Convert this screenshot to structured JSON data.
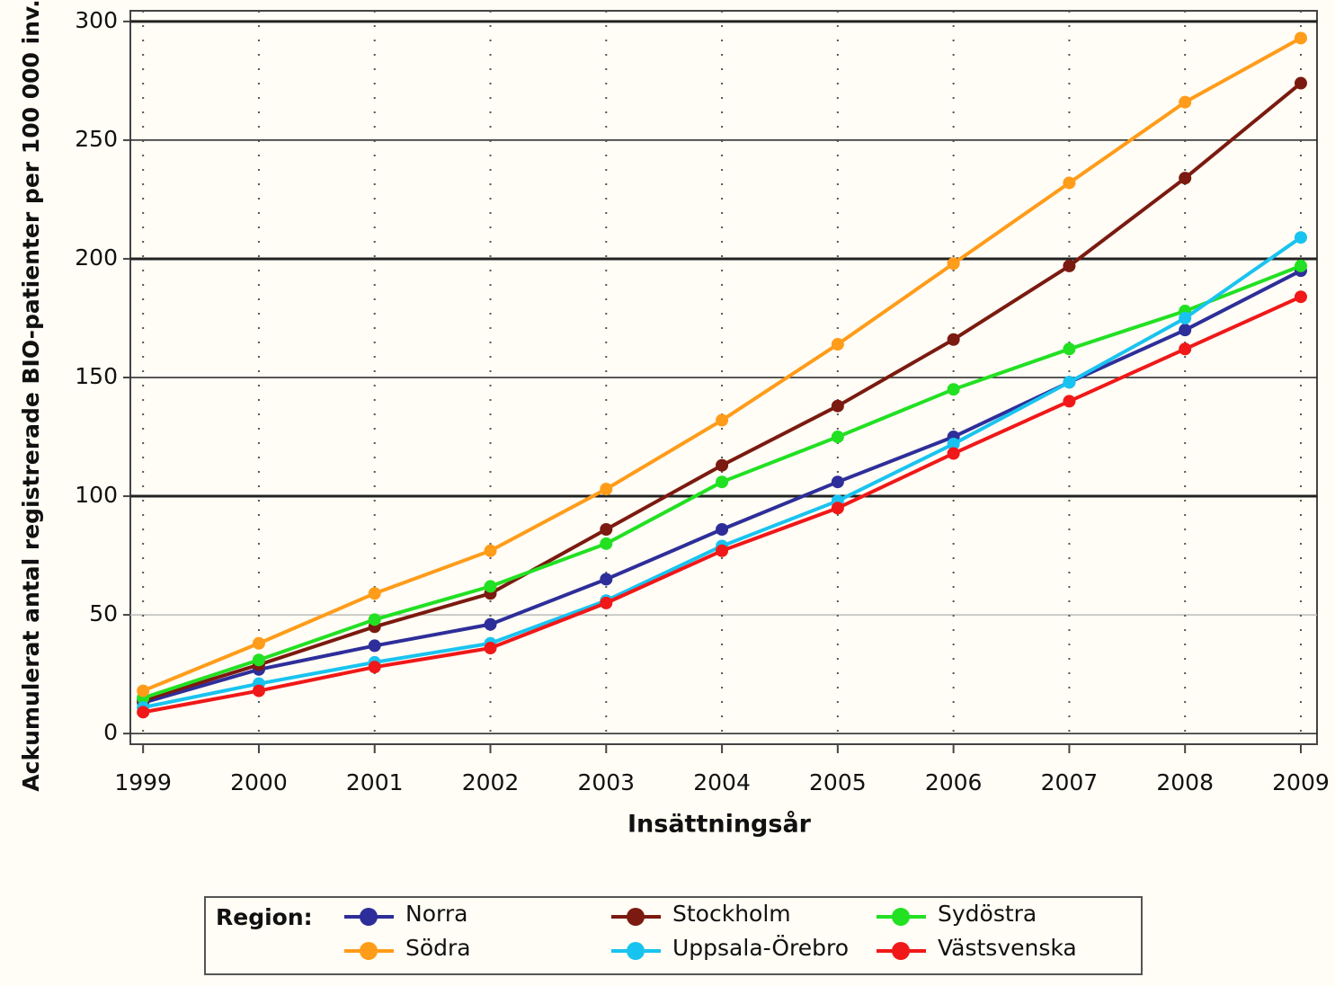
{
  "chart_data": {
    "type": "line",
    "x_label": "Insättningsår",
    "y_label": "Ackumulerat antal registrerade BIO-patienter per 100 000 inv.",
    "legend_title": "Region:",
    "x": [
      1999,
      2000,
      2001,
      2002,
      2003,
      2004,
      2005,
      2006,
      2007,
      2008,
      2009
    ],
    "series": [
      {
        "name": "Norra",
        "color": "#2e2e9a",
        "values": [
          13,
          27,
          37,
          46,
          65,
          86,
          106,
          125,
          148,
          170,
          195
        ]
      },
      {
        "name": "Stockholm",
        "color": "#7b1a10",
        "values": [
          14,
          29,
          45,
          59,
          86,
          113,
          138,
          166,
          197,
          234,
          274
        ]
      },
      {
        "name": "Sydöstra",
        "color": "#22e022",
        "values": [
          15,
          31,
          48,
          62,
          80,
          106,
          125,
          145,
          162,
          178,
          197
        ]
      },
      {
        "name": "Södra",
        "color": "#ff9c1a",
        "values": [
          18,
          38,
          59,
          77,
          103,
          132,
          164,
          198,
          232,
          266,
          293
        ]
      },
      {
        "name": "Uppsala-Örebro",
        "color": "#19c3f0",
        "values": [
          11,
          21,
          30,
          38,
          56,
          79,
          98,
          122,
          148,
          175,
          209
        ]
      },
      {
        "name": "Västsvenska",
        "color": "#f01818",
        "values": [
          9,
          18,
          28,
          36,
          55,
          77,
          95,
          118,
          140,
          162,
          184
        ]
      }
    ],
    "xlim": [
      1998.89,
      2009.14
    ],
    "ylim": [
      -4.5,
      304.5
    ],
    "xticks": [
      1999,
      2000,
      2001,
      2002,
      2003,
      2004,
      2005,
      2006,
      2007,
      2008,
      2009
    ],
    "yticks": [
      0,
      50,
      100,
      150,
      200,
      250,
      300
    ],
    "grid": true,
    "legend": "bottom"
  }
}
